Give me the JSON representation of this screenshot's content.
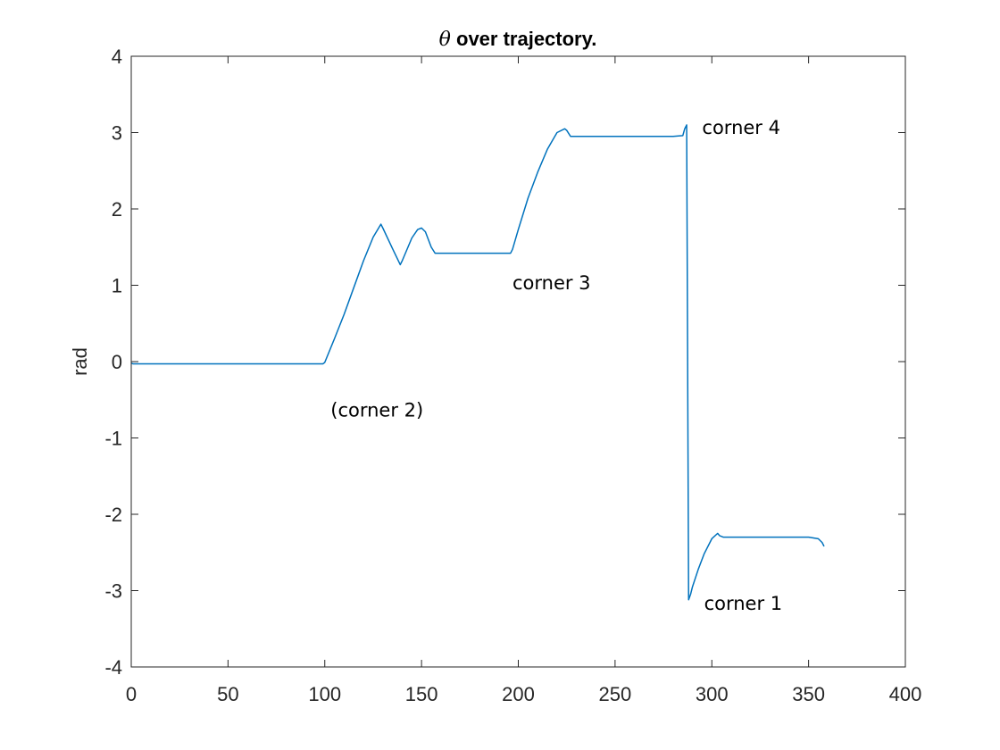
{
  "chart_data": {
    "type": "line",
    "title": {
      "symbol": "θ",
      "text": " over trajectory."
    },
    "xlabel": "",
    "ylabel": "rad",
    "xlim": [
      0,
      400
    ],
    "ylim": [
      -4,
      4
    ],
    "xticks": [
      0,
      50,
      100,
      150,
      200,
      250,
      300,
      350,
      400
    ],
    "yticks": [
      4,
      3,
      2,
      1,
      0,
      -1,
      -2,
      -3,
      -4
    ],
    "grid": false,
    "legend": "none",
    "line_color": "#0072BD",
    "series": [
      {
        "x": [
          0,
          1,
          99,
          100,
          105,
          110,
          115,
          120,
          125,
          129,
          130,
          135,
          139,
          140,
          145,
          148,
          150,
          152,
          155,
          157,
          160,
          180,
          196,
          197,
          200,
          205,
          210,
          215,
          220,
          224,
          225,
          227,
          230,
          240,
          250,
          260,
          270,
          280,
          285,
          286,
          287,
          288,
          289,
          290,
          293,
          296,
          300,
          303,
          304,
          306,
          310,
          320,
          330,
          340,
          350,
          355,
          357,
          358
        ],
        "y": [
          -0.02,
          -0.03,
          -0.03,
          -0.01,
          0.3,
          0.62,
          0.97,
          1.32,
          1.63,
          1.8,
          1.75,
          1.48,
          1.27,
          1.32,
          1.62,
          1.73,
          1.75,
          1.7,
          1.5,
          1.42,
          1.42,
          1.42,
          1.42,
          1.47,
          1.73,
          2.14,
          2.48,
          2.78,
          3.0,
          3.05,
          3.03,
          2.95,
          2.95,
          2.95,
          2.95,
          2.95,
          2.95,
          2.95,
          2.96,
          3.05,
          3.1,
          -3.12,
          -3.05,
          -2.95,
          -2.72,
          -2.52,
          -2.32,
          -2.25,
          -2.28,
          -2.3,
          -2.3,
          -2.3,
          -2.3,
          -2.3,
          -2.3,
          -2.32,
          -2.37,
          -2.42
        ]
      }
    ],
    "annotations": [
      {
        "text": "(corner 2)",
        "x": 103,
        "y": -0.72
      },
      {
        "text": "corner 3",
        "x": 197,
        "y": 0.95
      },
      {
        "text": "corner 4",
        "x": 295,
        "y": 2.98
      },
      {
        "text": "corner 1",
        "x": 296,
        "y": -3.25
      }
    ]
  }
}
